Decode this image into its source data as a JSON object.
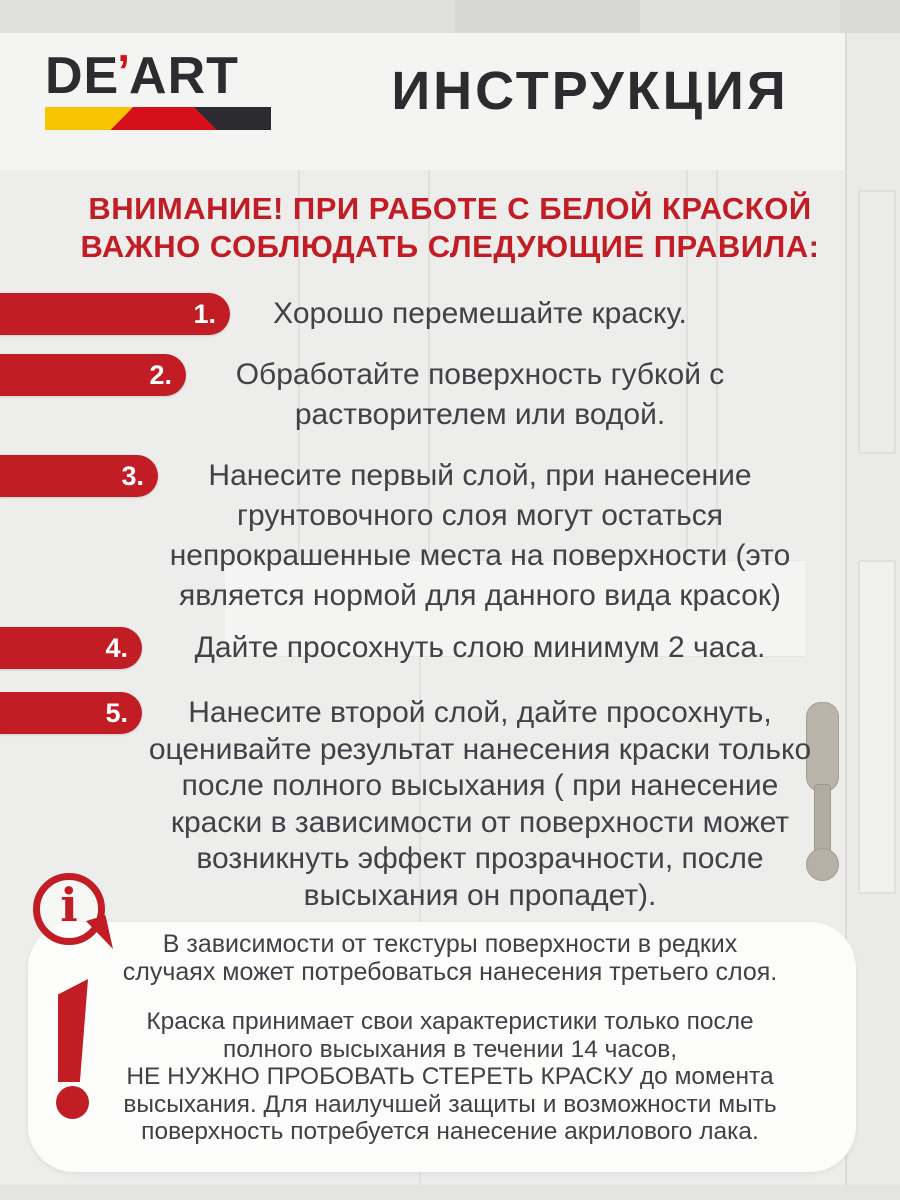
{
  "poster": {
    "brand": {
      "part_de": "DE",
      "apostrophe": "’",
      "part_art": "ART"
    },
    "title": "ИНСТРУКЦИЯ",
    "warning_text": "ВНИМАНИЕ! ПРИ РАБОТЕ С БЕЛОЙ КРАСКОЙ\nВАЖНО СОБЛЮДАТЬ СЛЕДУЮЩИЕ ПРАВИЛА:",
    "steps": [
      {
        "number": "1.",
        "text": "Хорошо перемешайте краску."
      },
      {
        "number": "2.",
        "text": "Обработайте поверхность губкой с\nрастворителем или водой."
      },
      {
        "number": "3.",
        "text": "Нанесите первый слой, при нанесение\nгрунтовочного слоя могут остаться\nнепрокрашенные места на поверхности (это\nявляется нормой для данного вида красок)"
      },
      {
        "number": "4.",
        "text": "Дайте просохнуть слою минимум 2 часа."
      },
      {
        "number": "5.",
        "text": "Нанесите второй слой, дайте просохнуть,\nоценивайте результат нанесения краски только\nпосле полного высыхания ( при нанесение\nкраски в зависимости от поверхности может\nвозникнуть эффект прозрачности, после\nвысыхания он пропадет)."
      }
    ],
    "info_icon_glyph": "i",
    "note_info": "В зависимости от текстуры поверхности в редких\nслучаях может потребоваться нанесения третьего слоя.",
    "note_warning": "Краска принимает свои характеристики только после\nполного высыхания в течении 14 часов,\nНЕ НУЖНО  ПРОБОВАТЬ СТЕРЕТЬ КРАСКУ до момента\nвысыхания. Для наилучшей защиты и возможности мыть\nповерхность потребуется нанесение акрилового лака.",
    "colors": {
      "accent_red": "#c21d25",
      "logo_red": "#d6101b",
      "logo_yellow": "#f6c400",
      "logo_black": "#2c2c30",
      "ink": "#2c2c30",
      "body_text": "#414147",
      "panel_white": "#fcfcfb",
      "background": "#ededec"
    }
  }
}
